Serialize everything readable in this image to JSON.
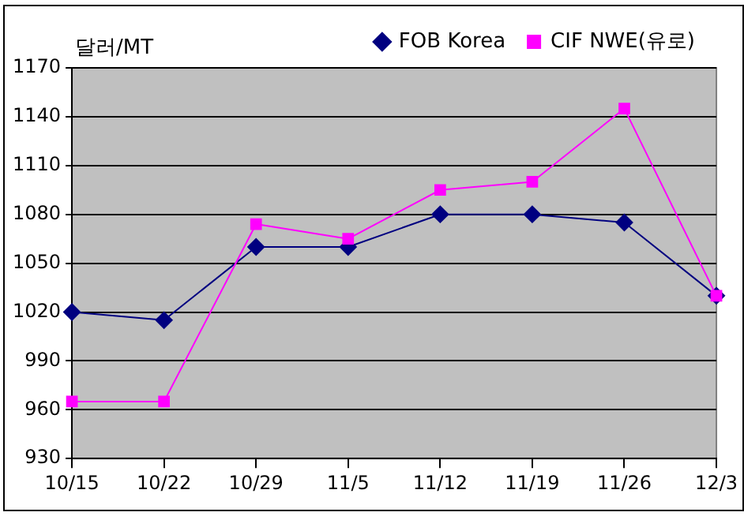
{
  "chart_data": {
    "type": "line",
    "ylabel": "달러/MT",
    "categories": [
      "10/15",
      "10/22",
      "10/29",
      "11/5",
      "11/12",
      "11/19",
      "11/26",
      "12/3"
    ],
    "series": [
      {
        "name": "FOB Korea",
        "color": "#000080",
        "marker": "diamond",
        "values": [
          1020,
          1015,
          1060,
          1060,
          1080,
          1080,
          1075,
          1030
        ]
      },
      {
        "name": "CIF NWE(유로)",
        "color": "#ff00ff",
        "marker": "square",
        "values": [
          965,
          965,
          1074,
          1065,
          1095,
          1100,
          1145,
          1030
        ]
      }
    ],
    "ylim": [
      930,
      1170
    ],
    "yticks": [
      930,
      960,
      990,
      1020,
      1050,
      1080,
      1110,
      1140,
      1170
    ],
    "grid": "y",
    "legend": "top right",
    "line_style": "solid"
  }
}
